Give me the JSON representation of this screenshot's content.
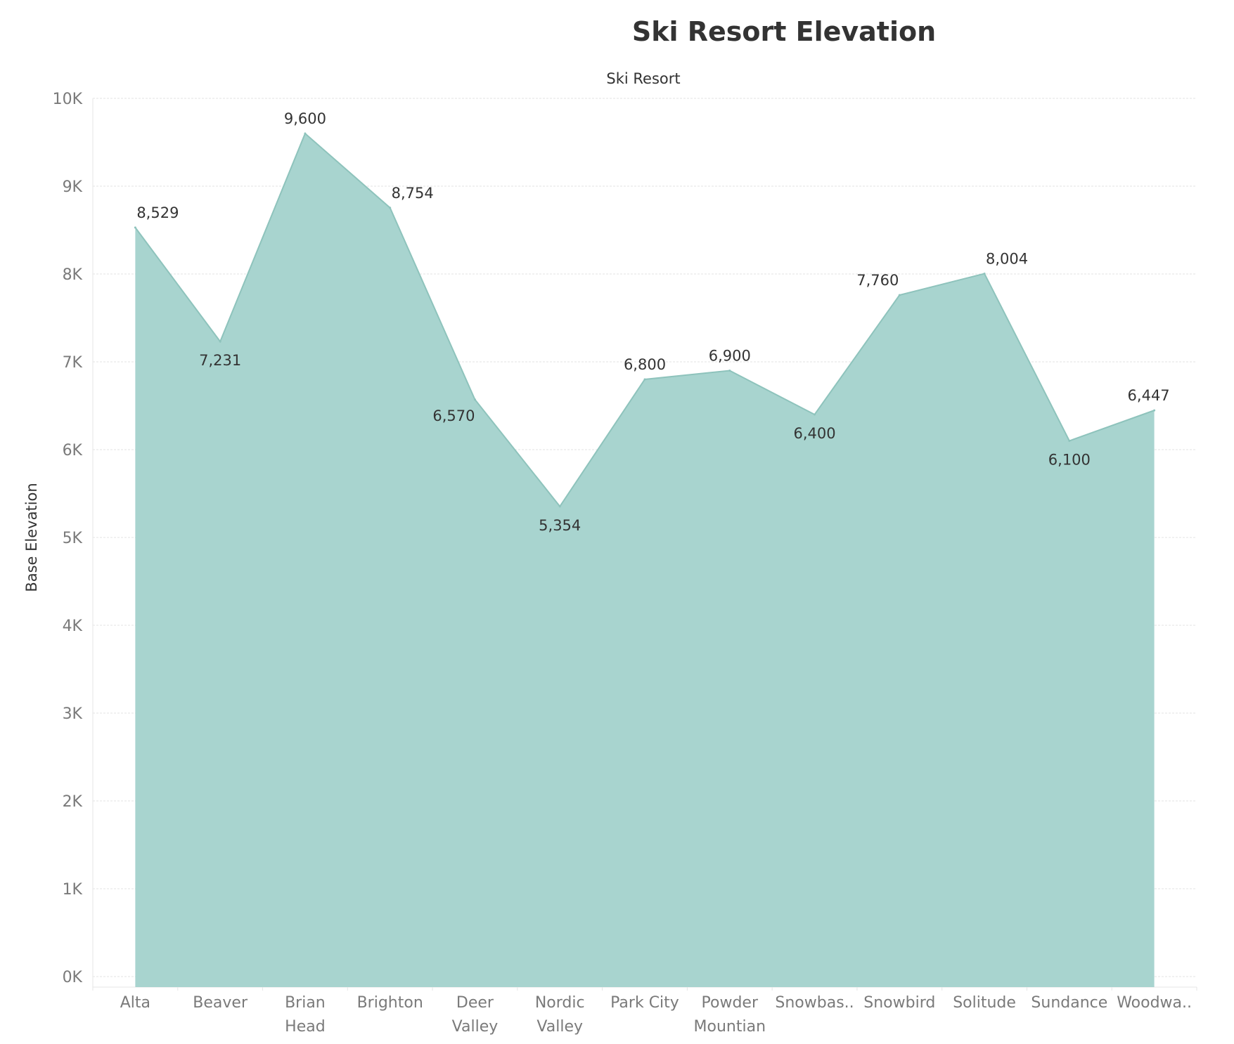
{
  "chart_data": {
    "type": "area",
    "title": "Ski Resort Elevation",
    "column_header": "Ski Resort",
    "xlabel": "",
    "ylabel": "Base Elevation",
    "categories": [
      [
        "Alta"
      ],
      [
        "Beaver"
      ],
      [
        "Brian",
        "Head"
      ],
      [
        "Brighton"
      ],
      [
        "Deer",
        "Valley"
      ],
      [
        "Nordic",
        "Valley"
      ],
      [
        "Park City"
      ],
      [
        "Powder",
        "Mountian"
      ],
      [
        "Snowbas.."
      ],
      [
        "Snowbird"
      ],
      [
        "Solitude"
      ],
      [
        "Sundance"
      ],
      [
        "Woodwa.."
      ]
    ],
    "values": [
      8529,
      7231,
      9600,
      8754,
      6570,
      5354,
      6800,
      6900,
      6400,
      7760,
      8004,
      6100,
      6447
    ],
    "data_labels": [
      "8,529",
      "7,231",
      "9,600",
      "8,754",
      "6,570",
      "5,354",
      "6,800",
      "6,900",
      "6,400",
      "7,760",
      "8,004",
      "6,100",
      "6,447"
    ],
    "yticks": [
      "0K",
      "1K",
      "2K",
      "3K",
      "4K",
      "5K",
      "6K",
      "7K",
      "8K",
      "9K",
      "10K"
    ],
    "ylim": [
      0,
      10000
    ],
    "grid": true,
    "fill_color": "#a8d4cf",
    "line_color": "#8ec3bc"
  }
}
